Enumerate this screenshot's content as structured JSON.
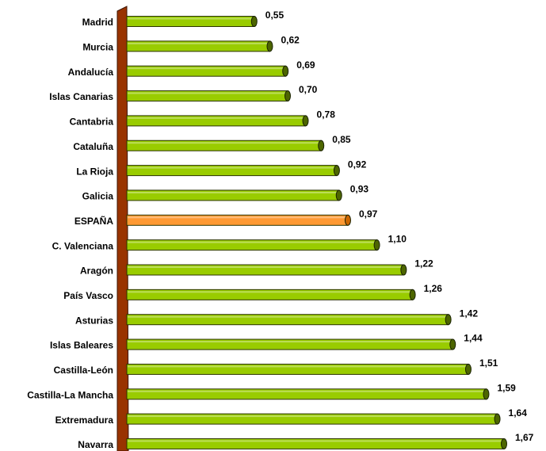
{
  "chart_data": {
    "type": "bar",
    "orientation": "horizontal",
    "categories": [
      "Madrid",
      "Murcia",
      "Andalucía",
      "Islas Canarias",
      "Cantabria",
      "Cataluña",
      "La Rioja",
      "Galicia",
      "ESPAÑA",
      "C. Valenciana",
      "Aragón",
      "País Vasco",
      "Asturias",
      "Islas Baleares",
      "Castilla-León",
      "Castilla-La Mancha",
      "Extremadura",
      "Navarra"
    ],
    "values": [
      0.55,
      0.62,
      0.69,
      0.7,
      0.78,
      0.85,
      0.92,
      0.93,
      0.97,
      1.1,
      1.22,
      1.26,
      1.42,
      1.44,
      1.51,
      1.59,
      1.64,
      1.67
    ],
    "value_labels": [
      "0,55",
      "0,62",
      "0,69",
      "0,70",
      "0,78",
      "0,85",
      "0,92",
      "0,93",
      "0,97",
      "1,10",
      "1,22",
      "1,26",
      "1,42",
      "1,44",
      "1,51",
      "1,59",
      "1,64",
      "1,67"
    ],
    "colors": [
      "#99cc00",
      "#99cc00",
      "#99cc00",
      "#99cc00",
      "#99cc00",
      "#99cc00",
      "#99cc00",
      "#99cc00",
      "#ff9933",
      "#99cc00",
      "#99cc00",
      "#99cc00",
      "#99cc00",
      "#99cc00",
      "#99cc00",
      "#99cc00",
      "#99cc00",
      "#99cc00"
    ]
  }
}
